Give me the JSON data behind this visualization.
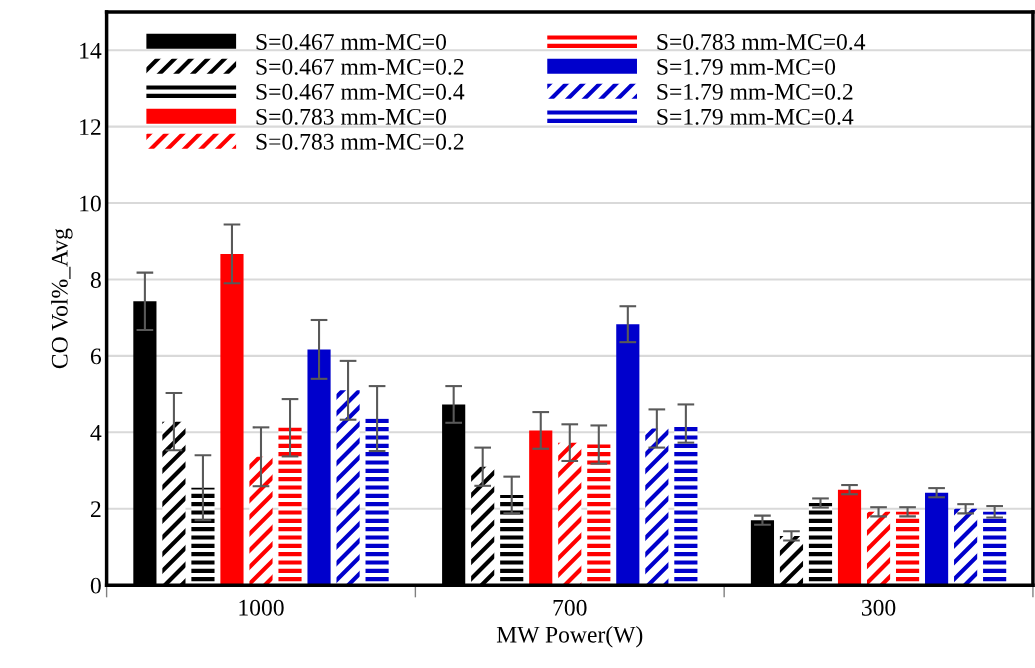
{
  "chart_data": {
    "type": "bar",
    "xlabel": "MW Power(W)",
    "ylabel": "CO Vol%_Avg",
    "categories": [
      "1000",
      "700",
      "300"
    ],
    "ylim": [
      0,
      15
    ],
    "yticks": [
      0,
      2,
      4,
      6,
      8,
      10,
      12,
      14
    ],
    "grid": "y",
    "legend": "top",
    "series": [
      {
        "name": "S=0.467 mm-MC=0",
        "color": "#000000",
        "values": [
          7.43,
          4.73,
          1.7
        ],
        "errors": [
          0.75,
          0.48,
          0.12
        ]
      },
      {
        "name": "S=0.467 mm-MC=0.2",
        "color": "#000000",
        "values": [
          4.28,
          3.1,
          1.29
        ],
        "errors": [
          0.75,
          0.5,
          0.12
        ]
      },
      {
        "name": "S=0.467 mm-MC=0.4",
        "color": "#000000",
        "values": [
          2.55,
          2.36,
          2.15
        ],
        "errors": [
          0.85,
          0.48,
          0.12
        ]
      },
      {
        "name": "S=0.783 mm-MC=0",
        "color": "#ff0000",
        "values": [
          8.67,
          4.05,
          2.5
        ],
        "errors": [
          0.77,
          0.48,
          0.12
        ]
      },
      {
        "name": "S=0.783 mm-MC=0.2",
        "color": "#ff0000",
        "values": [
          3.36,
          3.73,
          1.92
        ],
        "errors": [
          0.77,
          0.48,
          0.12
        ]
      },
      {
        "name": "S=0.783 mm-MC=0.4",
        "color": "#ff0000",
        "values": [
          4.12,
          3.68,
          1.92
        ],
        "errors": [
          0.75,
          0.5,
          0.12
        ]
      },
      {
        "name": "S=1.79 mm-MC=0",
        "color": "#0000cc",
        "values": [
          6.17,
          6.83,
          2.42
        ],
        "errors": [
          0.77,
          0.47,
          0.12
        ]
      },
      {
        "name": "S=1.79 mm-MC=0.2",
        "color": "#0000cc",
        "values": [
          5.1,
          4.1,
          2.0
        ],
        "errors": [
          0.77,
          0.5,
          0.12
        ]
      },
      {
        "name": "S=1.79 mm-MC=0.4",
        "color": "#0000cc",
        "values": [
          4.36,
          4.23,
          1.92
        ],
        "errors": [
          0.85,
          0.5,
          0.15
        ]
      }
    ]
  }
}
